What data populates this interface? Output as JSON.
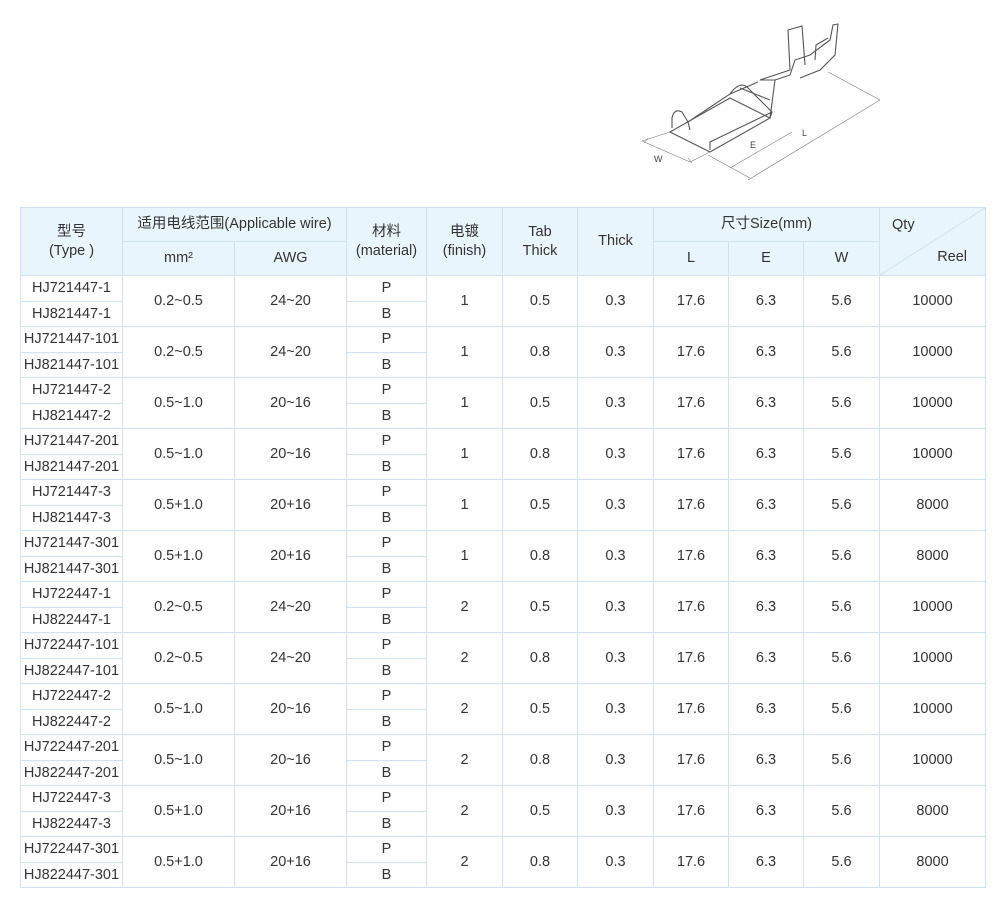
{
  "drawing": {
    "labels": {
      "w": "W",
      "e": "E",
      "l": "L"
    }
  },
  "header": {
    "type_cn": "型号",
    "type_en": "(Type )",
    "wire": "适用电线范围(Applicable wire)",
    "mm2": "mm²",
    "awg": "AWG",
    "material_cn": "材料",
    "material_en": "(material)",
    "finish_cn": "电镀",
    "finish_en": "(finish)",
    "tab_thick_1": "Tab",
    "tab_thick_2": "Thick",
    "thick": "Thick",
    "size": "尺寸Size(mm)",
    "l": "L",
    "e": "E",
    "w": "W",
    "qty": "Qty",
    "reel": "Reel"
  },
  "rows": [
    {
      "types": [
        "HJ721447-1",
        "HJ821447-1"
      ],
      "mm2": "0.2~0.5",
      "awg": "24~20",
      "materials": [
        "P",
        "B"
      ],
      "finish": "1",
      "tab": "0.5",
      "thick": "0.3",
      "l": "17.6",
      "e": "6.3",
      "w": "5.6",
      "qty": "10000"
    },
    {
      "types": [
        "HJ721447-101",
        "HJ821447-101"
      ],
      "mm2": "0.2~0.5",
      "awg": "24~20",
      "materials": [
        "P",
        "B"
      ],
      "finish": "1",
      "tab": "0.8",
      "thick": "0.3",
      "l": "17.6",
      "e": "6.3",
      "w": "5.6",
      "qty": "10000"
    },
    {
      "types": [
        "HJ721447-2",
        "HJ821447-2"
      ],
      "mm2": "0.5~1.0",
      "awg": "20~16",
      "materials": [
        "P",
        "B"
      ],
      "finish": "1",
      "tab": "0.5",
      "thick": "0.3",
      "l": "17.6",
      "e": "6.3",
      "w": "5.6",
      "qty": "10000"
    },
    {
      "types": [
        "HJ721447-201",
        "HJ821447-201"
      ],
      "mm2": "0.5~1.0",
      "awg": "20~16",
      "materials": [
        "P",
        "B"
      ],
      "finish": "1",
      "tab": "0.8",
      "thick": "0.3",
      "l": "17.6",
      "e": "6.3",
      "w": "5.6",
      "qty": "10000"
    },
    {
      "types": [
        "HJ721447-3",
        "HJ821447-3"
      ],
      "mm2": "0.5+1.0",
      "awg": "20+16",
      "materials": [
        "P",
        "B"
      ],
      "finish": "1",
      "tab": "0.5",
      "thick": "0.3",
      "l": "17.6",
      "e": "6.3",
      "w": "5.6",
      "qty": "8000"
    },
    {
      "types": [
        "HJ721447-301",
        "HJ821447-301"
      ],
      "mm2": "0.5+1.0",
      "awg": "20+16",
      "materials": [
        "P",
        "B"
      ],
      "finish": "1",
      "tab": "0.8",
      "thick": "0.3",
      "l": "17.6",
      "e": "6.3",
      "w": "5.6",
      "qty": "8000"
    },
    {
      "types": [
        "HJ722447-1",
        "HJ822447-1"
      ],
      "mm2": "0.2~0.5",
      "awg": "24~20",
      "materials": [
        "P",
        "B"
      ],
      "finish": "2",
      "tab": "0.5",
      "thick": "0.3",
      "l": "17.6",
      "e": "6.3",
      "w": "5.6",
      "qty": "10000"
    },
    {
      "types": [
        "HJ722447-101",
        "HJ822447-101"
      ],
      "mm2": "0.2~0.5",
      "awg": "24~20",
      "materials": [
        "P",
        "B"
      ],
      "finish": "2",
      "tab": "0.8",
      "thick": "0.3",
      "l": "17.6",
      "e": "6.3",
      "w": "5.6",
      "qty": "10000"
    },
    {
      "types": [
        "HJ722447-2",
        "HJ822447-2"
      ],
      "mm2": "0.5~1.0",
      "awg": "20~16",
      "materials": [
        "P",
        "B"
      ],
      "finish": "2",
      "tab": "0.5",
      "thick": "0.3",
      "l": "17.6",
      "e": "6.3",
      "w": "5.6",
      "qty": "10000"
    },
    {
      "types": [
        "HJ722447-201",
        "HJ822447-201"
      ],
      "mm2": "0.5~1.0",
      "awg": "20~16",
      "materials": [
        "P",
        "B"
      ],
      "finish": "2",
      "tab": "0.8",
      "thick": "0.3",
      "l": "17.6",
      "e": "6.3",
      "w": "5.6",
      "qty": "10000"
    },
    {
      "types": [
        "HJ722447-3",
        "HJ822447-3"
      ],
      "mm2": "0.5+1.0",
      "awg": "20+16",
      "materials": [
        "P",
        "B"
      ],
      "finish": "2",
      "tab": "0.5",
      "thick": "0.3",
      "l": "17.6",
      "e": "6.3",
      "w": "5.6",
      "qty": "8000"
    },
    {
      "types": [
        "HJ722447-301",
        "HJ822447-301"
      ],
      "mm2": "0.5+1.0",
      "awg": "20+16",
      "materials": [
        "P",
        "B"
      ],
      "finish": "2",
      "tab": "0.8",
      "thick": "0.3",
      "l": "17.6",
      "e": "6.3",
      "w": "5.6",
      "qty": "8000"
    }
  ]
}
